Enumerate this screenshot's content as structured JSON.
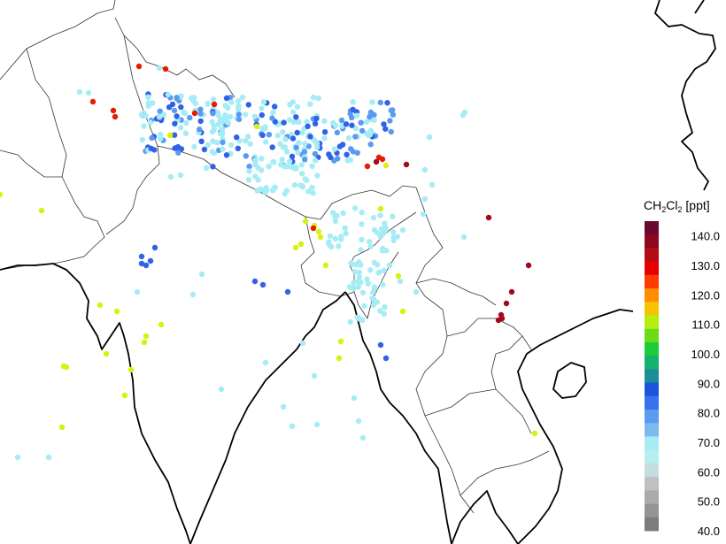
{
  "colorbar": {
    "species_main": "CH",
    "species_sub1": "2",
    "species_mid": "Cl",
    "species_sub2": "2",
    "unit": " [ppt]",
    "ticks": [
      {
        "value": 140,
        "label": "140.0"
      },
      {
        "value": 130,
        "label": "130.0"
      },
      {
        "value": 120,
        "label": "120.0"
      },
      {
        "value": 110,
        "label": "110.0"
      },
      {
        "value": 100,
        "label": "100.0"
      },
      {
        "value": 90,
        "label": "90.0"
      },
      {
        "value": 80,
        "label": "80.0"
      },
      {
        "value": 70,
        "label": "70.0"
      },
      {
        "value": 60,
        "label": "60.0"
      },
      {
        "value": 50,
        "label": "50.0"
      },
      {
        "value": 40,
        "label": "40.0"
      }
    ],
    "range": [
      40,
      145
    ],
    "colors": [
      "#7c7c7c",
      "#949494",
      "#aaaaaa",
      "#c0c0c0",
      "#c2dede",
      "#b5f0ee",
      "#a6ecf5",
      "#7fb8ee",
      "#5a9af0",
      "#3a72ee",
      "#1c52de",
      "#1a8f9a",
      "#16b070",
      "#1ccc3a",
      "#6cdc18",
      "#b6ee14",
      "#f4c400",
      "#ff8c00",
      "#ff3c00",
      "#e80000",
      "#b40c14",
      "#8c0820",
      "#6a0a30"
    ]
  },
  "map_colors": {
    "borders": "#333333",
    "coast": "#000000",
    "low": "#a6ecf5",
    "mid_blue": "#2f62e6",
    "light_blue": "#5a9af0",
    "yellow": "#d8f20e",
    "red": "#e81a00",
    "dark_red": "#a00a1c"
  }
}
